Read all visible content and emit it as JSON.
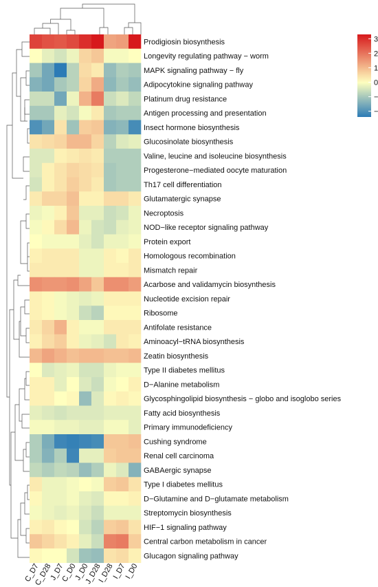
{
  "chart_data": {
    "type": "heatmap",
    "columns": [
      "C_D7",
      "C_D28",
      "J_D7",
      "C_D0",
      "J_D0",
      "J_D28",
      "I_D28",
      "I_D7",
      "I_D0"
    ],
    "rows": [
      "Prodigiosin biosynthesis",
      "Longevity regulating pathway − worm",
      "MAPK signaling pathway − fly",
      "Adipocytokine signaling pathway",
      "Platinum drug resistance",
      "Antigen processing and presentation",
      "Insect hormone biosynthesis",
      "Glucosinolate biosynthesis",
      "Valine, leucine and isoleucine biosynthesis",
      "Progesterone−mediated oocyte maturation",
      "Th17 cell differentiation",
      "Glutamatergic synapse",
      "Necroptosis",
      "NOD−like receptor signaling pathway",
      "Protein export",
      "Homologous recombination",
      "Mismatch repair",
      "Acarbose and validamycin biosynthesis",
      "Nucleotide excision repair",
      "Ribosome",
      "Antifolate resistance",
      "Aminoacyl−tRNA biosynthesis",
      "Zeatin biosynthesis",
      "Type II diabetes mellitus",
      "D−Alanine metabolism",
      "Glycosphingolipid biosynthesis − globo and isoglobo series",
      "Fatty acid biosynthesis",
      "Primary immunodeficiency",
      "Cushing syndrome",
      "Renal cell carcinoma",
      "GABAergic synapse",
      "Type I diabetes mellitus",
      "D−Glutamine and D−glutamate metabolism",
      "Streptomycin biosynthesis",
      "HIF−1 signaling pathway",
      "Central carbon metabolism in cancer",
      "Glucagon signaling pathway"
    ],
    "values": [
      [
        2.7,
        2.5,
        2.4,
        2.6,
        3.0,
        3.3,
        1.3,
        1.4,
        3.3
      ],
      [
        0.0,
        -0.3,
        -0.5,
        -0.2,
        0.6,
        0.8,
        -0.1,
        -0.1,
        0.0
      ],
      [
        -1.0,
        -1.6,
        -2.4,
        -0.8,
        0.5,
        0.3,
        -1.2,
        -0.9,
        -1.0
      ],
      [
        -1.4,
        -1.6,
        -1.0,
        -0.8,
        0.6,
        1.2,
        -1.3,
        -1.0,
        -1.2
      ],
      [
        -0.6,
        -0.6,
        -1.6,
        -0.2,
        1.1,
        1.9,
        -0.6,
        -0.4,
        -0.7
      ],
      [
        -1.0,
        -1.0,
        -0.3,
        -0.5,
        -0.1,
        0.3,
        -1.0,
        -0.9,
        -0.9
      ],
      [
        -2.0,
        -1.6,
        0.4,
        -1.1,
        0.7,
        0.8,
        -1.4,
        -1.3,
        -2.1
      ],
      [
        0.4,
        0.5,
        0.6,
        1.0,
        1.0,
        0.6,
        -0.8,
        -0.4,
        -0.3
      ],
      [
        -0.4,
        -0.4,
        0.2,
        0.3,
        0.4,
        0.3,
        -0.9,
        -0.9,
        -0.9
      ],
      [
        -0.4,
        0.2,
        0.4,
        0.6,
        0.5,
        0.4,
        -1.0,
        -0.9,
        -0.9
      ],
      [
        -0.5,
        0.2,
        0.4,
        0.7,
        0.5,
        0.3,
        -1.0,
        -0.9,
        -0.9
      ],
      [
        0.3,
        0.6,
        0.6,
        0.9,
        0.2,
        0.2,
        0.5,
        0.5,
        0.3
      ],
      [
        -0.2,
        -0.1,
        0.2,
        0.8,
        -0.3,
        -0.3,
        -0.6,
        -0.5,
        -0.2
      ],
      [
        -0.1,
        0.1,
        0.5,
        1.0,
        -0.2,
        -0.5,
        -0.6,
        -0.3,
        -0.2
      ],
      [
        0.0,
        -0.1,
        -0.1,
        -0.1,
        -0.3,
        -0.5,
        -0.2,
        -0.2,
        -0.1
      ],
      [
        0.2,
        0.3,
        0.3,
        0.3,
        -0.2,
        -0.2,
        0.2,
        0.1,
        0.3
      ],
      [
        0.3,
        0.3,
        0.3,
        0.3,
        -0.2,
        -0.2,
        0.2,
        0.2,
        0.3
      ],
      [
        1.6,
        1.5,
        1.5,
        1.6,
        1.3,
        0.8,
        1.6,
        1.6,
        1.4
      ],
      [
        0.2,
        0.1,
        -0.1,
        -0.2,
        -0.3,
        -0.2,
        0.2,
        0.2,
        0.2
      ],
      [
        0.2,
        0.1,
        -0.1,
        -0.2,
        -0.6,
        -0.8,
        0.1,
        0.1,
        0.1
      ],
      [
        0.3,
        0.6,
        1.1,
        0.2,
        -0.1,
        -0.1,
        0.3,
        0.3,
        0.3
      ],
      [
        0.2,
        0.5,
        0.7,
        0.2,
        -0.2,
        -0.3,
        -0.5,
        0.3,
        0.2
      ],
      [
        1.0,
        1.3,
        1.1,
        0.9,
        1.0,
        1.0,
        0.9,
        0.9,
        1.0
      ],
      [
        0.0,
        -0.4,
        -0.3,
        -0.2,
        -0.5,
        -0.5,
        -0.2,
        -0.1,
        -0.1
      ],
      [
        0.2,
        0.2,
        -0.3,
        0.0,
        -0.4,
        -0.6,
        -0.1,
        0.0,
        0.2
      ],
      [
        0.2,
        0.2,
        0.0,
        0.1,
        -1.2,
        -0.4,
        0.1,
        0.2,
        0.1
      ],
      [
        -0.3,
        -0.4,
        -0.5,
        -0.4,
        -0.4,
        -0.4,
        -0.3,
        -0.3,
        -0.3
      ],
      [
        -0.1,
        -0.1,
        -0.2,
        -0.2,
        -0.3,
        -0.3,
        -0.1,
        -0.1,
        -0.3
      ],
      [
        -0.9,
        -1.5,
        -2.2,
        -2.3,
        -2.2,
        -2.1,
        0.8,
        0.8,
        0.9
      ],
      [
        -0.9,
        -1.4,
        -0.9,
        -2.2,
        -0.3,
        -0.3,
        0.7,
        0.8,
        0.8
      ],
      [
        -0.7,
        -0.9,
        -0.7,
        -0.8,
        -1.2,
        -0.9,
        -0.2,
        -0.4,
        -1.4
      ],
      [
        0.3,
        -0.2,
        -0.2,
        -0.1,
        0.0,
        -0.1,
        0.7,
        0.8,
        0.4
      ],
      [
        0.1,
        -0.2,
        -0.2,
        -0.1,
        -0.3,
        -0.4,
        0.1,
        0.1,
        0.2
      ],
      [
        -0.1,
        -0.2,
        -0.3,
        -0.2,
        -0.4,
        -0.6,
        -0.2,
        -0.2,
        -0.2
      ],
      [
        0.2,
        0.3,
        0.1,
        0.0,
        -0.5,
        -0.8,
        0.7,
        0.8,
        0.4
      ],
      [
        0.8,
        0.6,
        0.4,
        0.2,
        -0.3,
        -0.6,
        1.8,
        1.9,
        0.7
      ],
      [
        0.1,
        0.0,
        0.0,
        -0.5,
        -1.1,
        -1.2,
        0.4,
        0.5,
        0.2
      ]
    ],
    "legend": {
      "ticks": [
        3,
        2,
        1,
        0,
        -1,
        -2
      ],
      "tick_labels": [
        "3",
        "2",
        "1",
        "0",
        "−1",
        "−2"
      ],
      "range": [
        -2.4,
        3.3
      ],
      "placement": "top-right"
    },
    "colormap": {
      "low": "#2c7bb6",
      "mid": "#ffffbf",
      "high": "#d7191c"
    },
    "title": "",
    "xlabel": "",
    "ylabel": "",
    "grid": false
  }
}
